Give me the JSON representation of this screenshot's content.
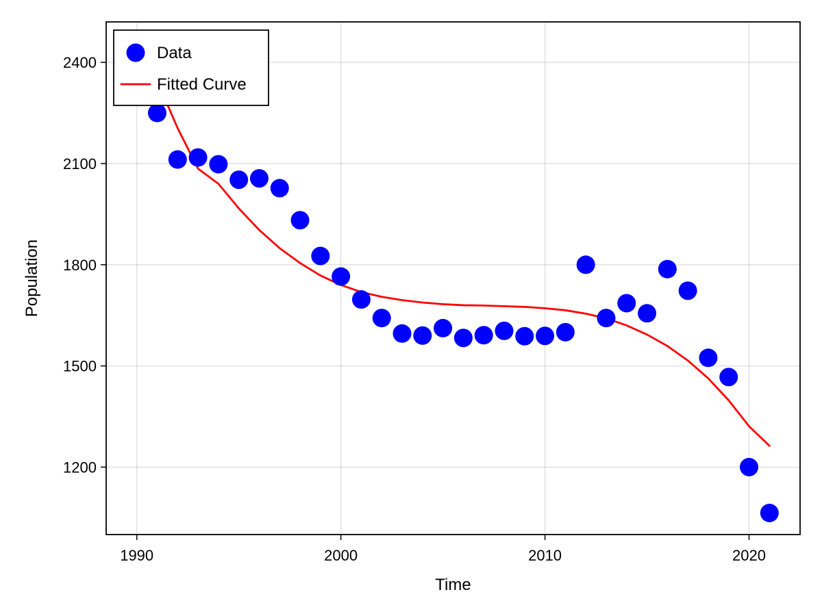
{
  "chart_data": {
    "type": "scatter",
    "title": "",
    "xlabel": "Time",
    "ylabel": "Population",
    "xlim": [
      1988.5,
      2022.5
    ],
    "ylim": [
      1000,
      2520
    ],
    "x_ticks": [
      1990,
      2000,
      2010,
      2020
    ],
    "y_ticks": [
      1200,
      1500,
      1800,
      2100,
      2400
    ],
    "grid": true,
    "legend_position": "top-left",
    "series": [
      {
        "name": "Data",
        "kind": "scatter",
        "color": "#0000ff",
        "points": [
          {
            "x": 1991,
            "y": 2250
          },
          {
            "x": 1992,
            "y": 2112
          },
          {
            "x": 1993,
            "y": 2118
          },
          {
            "x": 1994,
            "y": 2098
          },
          {
            "x": 1995,
            "y": 2052
          },
          {
            "x": 1996,
            "y": 2056
          },
          {
            "x": 1997,
            "y": 2027
          },
          {
            "x": 1998,
            "y": 1932
          },
          {
            "x": 1999,
            "y": 1826
          },
          {
            "x": 2000,
            "y": 1765
          },
          {
            "x": 2001,
            "y": 1697
          },
          {
            "x": 2002,
            "y": 1642
          },
          {
            "x": 2003,
            "y": 1596
          },
          {
            "x": 2004,
            "y": 1590
          },
          {
            "x": 2005,
            "y": 1612
          },
          {
            "x": 2006,
            "y": 1583
          },
          {
            "x": 2007,
            "y": 1591
          },
          {
            "x": 2008,
            "y": 1604
          },
          {
            "x": 2009,
            "y": 1588
          },
          {
            "x": 2010,
            "y": 1589
          },
          {
            "x": 2011,
            "y": 1600
          },
          {
            "x": 2012,
            "y": 1800
          },
          {
            "x": 2013,
            "y": 1642
          },
          {
            "x": 2014,
            "y": 1686
          },
          {
            "x": 2015,
            "y": 1656
          },
          {
            "x": 2016,
            "y": 1787
          },
          {
            "x": 2017,
            "y": 1723
          },
          {
            "x": 2018,
            "y": 1524
          },
          {
            "x": 2019,
            "y": 1467
          },
          {
            "x": 2020,
            "y": 1200
          },
          {
            "x": 2021,
            "y": 1064
          }
        ]
      },
      {
        "name": "Fitted Curve",
        "kind": "line",
        "color": "#ff0000",
        "points": [
          {
            "x": 1991,
            "y": 2345
          },
          {
            "x": 1992,
            "y": 2205
          },
          {
            "x": 1993,
            "y": 2085
          },
          {
            "x": 1994,
            "y": 2040
          },
          {
            "x": 1995,
            "y": 1967
          },
          {
            "x": 1996,
            "y": 1903
          },
          {
            "x": 1997,
            "y": 1849
          },
          {
            "x": 1998,
            "y": 1805
          },
          {
            "x": 1999,
            "y": 1768
          },
          {
            "x": 2000,
            "y": 1740
          },
          {
            "x": 2001,
            "y": 1719
          },
          {
            "x": 2002,
            "y": 1705
          },
          {
            "x": 2003,
            "y": 1695
          },
          {
            "x": 2004,
            "y": 1688
          },
          {
            "x": 2005,
            "y": 1683
          },
          {
            "x": 2006,
            "y": 1680
          },
          {
            "x": 2007,
            "y": 1679
          },
          {
            "x": 2008,
            "y": 1677
          },
          {
            "x": 2009,
            "y": 1675
          },
          {
            "x": 2010,
            "y": 1671
          },
          {
            "x": 2011,
            "y": 1665
          },
          {
            "x": 2012,
            "y": 1655
          },
          {
            "x": 2013,
            "y": 1641
          },
          {
            "x": 2014,
            "y": 1620
          },
          {
            "x": 2015,
            "y": 1593
          },
          {
            "x": 2016,
            "y": 1559
          },
          {
            "x": 2017,
            "y": 1516
          },
          {
            "x": 2018,
            "y": 1463
          },
          {
            "x": 2019,
            "y": 1398
          },
          {
            "x": 2020,
            "y": 1321
          },
          {
            "x": 2021,
            "y": 1263
          }
        ]
      }
    ]
  }
}
